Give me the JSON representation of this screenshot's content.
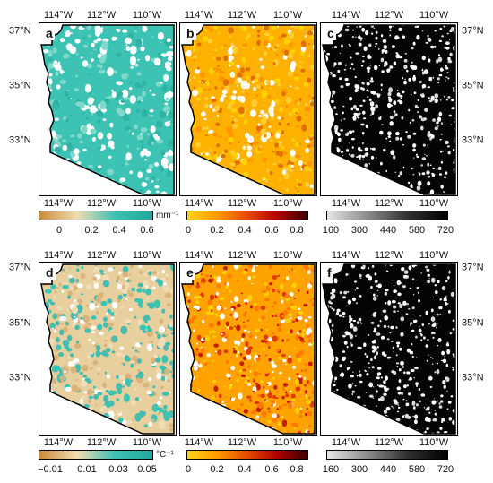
{
  "lon_labels": [
    "114°W",
    "112°W",
    "110°W"
  ],
  "lat_labels": [
    "37°N",
    "35°N",
    "33°N"
  ],
  "panels": [
    {
      "letter": "a",
      "theme": "teal"
    },
    {
      "letter": "b",
      "theme": "orange"
    },
    {
      "letter": "c",
      "theme": "gray"
    },
    {
      "letter": "d",
      "theme": "beigeteal"
    },
    {
      "letter": "e",
      "theme": "hotorange"
    },
    {
      "letter": "f",
      "theme": "gray"
    }
  ],
  "colorbars": [
    {
      "unit": "mm⁻¹",
      "ticks": [
        "0",
        "0.2",
        "0.4",
        "0.6"
      ],
      "colors": [
        "#c98c3a",
        "#f1dcb0",
        "#3fc0b4",
        "#1fa89b"
      ]
    },
    {
      "unit": "",
      "ticks": [
        "0",
        "0.2",
        "0.4",
        "0.6",
        "0.8"
      ],
      "colors": [
        "#ffd21a",
        "#ff9a00",
        "#e64a00",
        "#b00000",
        "#3a0000"
      ]
    },
    {
      "unit": "",
      "ticks": [
        "160",
        "300",
        "440",
        "580",
        "720"
      ],
      "colors": [
        "#e6e6e6",
        "#8c8c8c",
        "#303030",
        "#000000"
      ]
    },
    {
      "unit": "°C⁻¹",
      "ticks": [
        "−0.01",
        "0.01",
        "0.03",
        "0.05"
      ],
      "colors": [
        "#c98c3a",
        "#f1dcb0",
        "#3fc0b4",
        "#1fa89b"
      ]
    },
    {
      "unit": "",
      "ticks": [
        "0",
        "0.2",
        "0.4",
        "0.6",
        "0.8"
      ],
      "colors": [
        "#ffd21a",
        "#ff9a00",
        "#e64a00",
        "#b00000",
        "#3a0000"
      ]
    },
    {
      "unit": "",
      "ticks": [
        "160",
        "300",
        "440",
        "580",
        "720"
      ],
      "colors": [
        "#e6e6e6",
        "#8c8c8c",
        "#303030",
        "#000000"
      ]
    }
  ]
}
